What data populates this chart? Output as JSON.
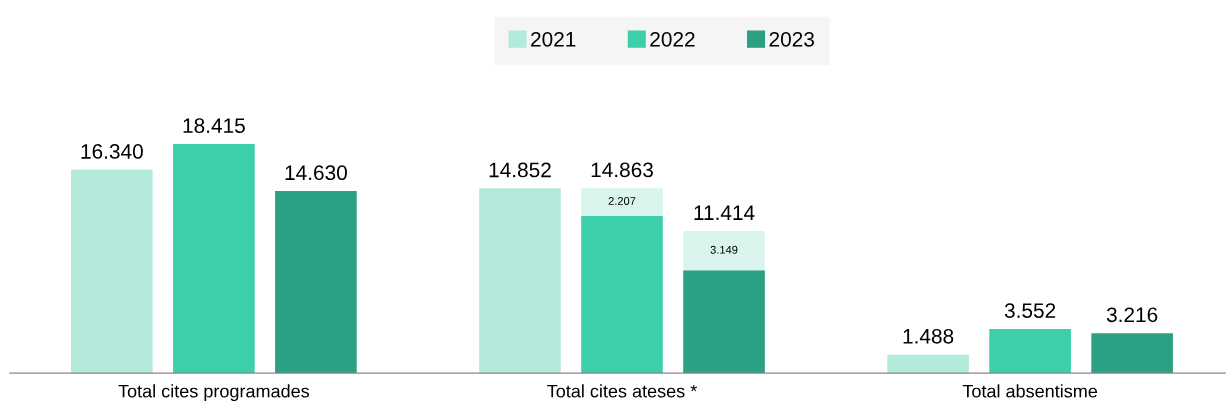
{
  "chart_data": {
    "type": "bar",
    "stacked": true,
    "categories": [
      null,
      "Total cites programades",
      null,
      null,
      null,
      "Total cites ateses *",
      null,
      null,
      null,
      "Total absentisme",
      null
    ],
    "series": [
      {
        "name": "2021",
        "color": "#b3eadc",
        "values": [
          16340,
          null,
          null,
          null,
          14852,
          null,
          null,
          null,
          1488,
          null,
          null
        ]
      },
      {
        "name": "2022",
        "color": "#3dcfac",
        "values": [
          null,
          18415,
          null,
          null,
          null,
          12656,
          null,
          null,
          null,
          3552,
          null
        ]
      },
      {
        "name": "2023",
        "color": "#2aa084",
        "values": [
          null,
          null,
          14630,
          null,
          null,
          null,
          8265,
          null,
          null,
          null,
          3216
        ]
      },
      {
        "color": "#d9f5ee",
        "values": [
          null,
          null,
          null,
          null,
          null,
          2207,
          3149,
          null,
          null,
          null,
          null
        ],
        "value_labels": [
          null,
          null,
          null,
          null,
          null,
          "2.207",
          "3.149",
          null,
          null,
          null,
          null
        ]
      }
    ],
    "totals": [
      "16.340",
      "18.415",
      "14.630",
      null,
      "14.852",
      "14.863",
      "11.414",
      null,
      "1.488",
      "3.552",
      "3.216"
    ],
    "grid": false,
    "legend": "top"
  }
}
